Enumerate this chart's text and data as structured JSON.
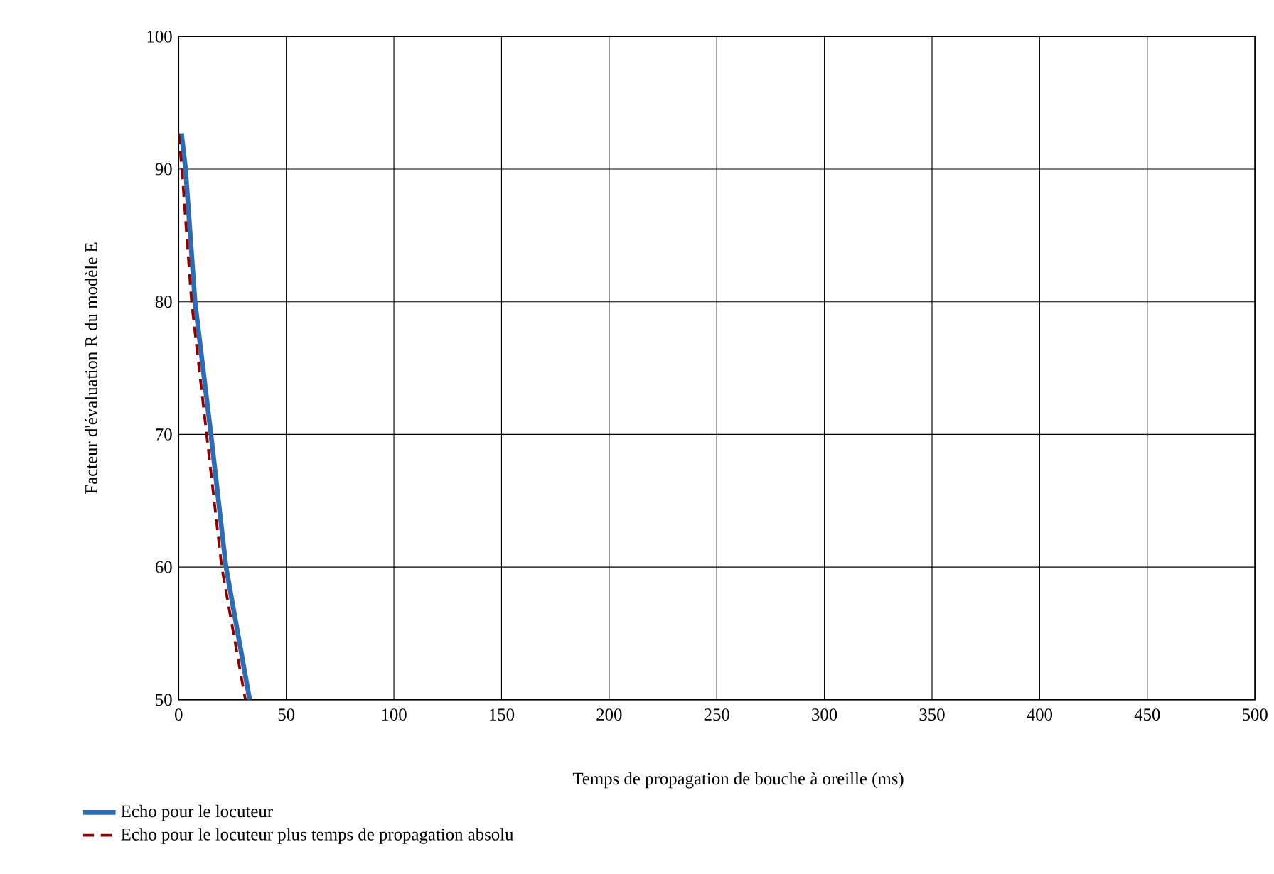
{
  "chart_data": {
    "type": "line",
    "xlabel": "Temps de propagation de bouche à oreille (ms)",
    "ylabel": "Facteur d'évaluation R du modèle E",
    "xlim": [
      0,
      500
    ],
    "ylim": [
      50,
      100
    ],
    "xticks": [
      0,
      50,
      100,
      150,
      200,
      250,
      300,
      350,
      400,
      450,
      500
    ],
    "yticks": [
      50,
      60,
      70,
      80,
      90,
      100
    ],
    "grid": true,
    "legend": "bottom left",
    "series": [
      {
        "name": "Echo pour le locuteur",
        "color": "#2e6bb0",
        "line_style": "solid",
        "x": [
          1.3,
          3.2,
          7.6,
          15,
          22,
          33
        ],
        "values": [
          92.7,
          90,
          80,
          70,
          60,
          50
        ]
      },
      {
        "name": "Echo pour le locuteur plus temps de propagation absolu",
        "color": "#8b0000",
        "line_style": "dashed",
        "x": [
          0,
          1.5,
          6,
          13,
          20,
          31
        ],
        "values": [
          92.7,
          90,
          80,
          70,
          60,
          50
        ]
      }
    ]
  }
}
